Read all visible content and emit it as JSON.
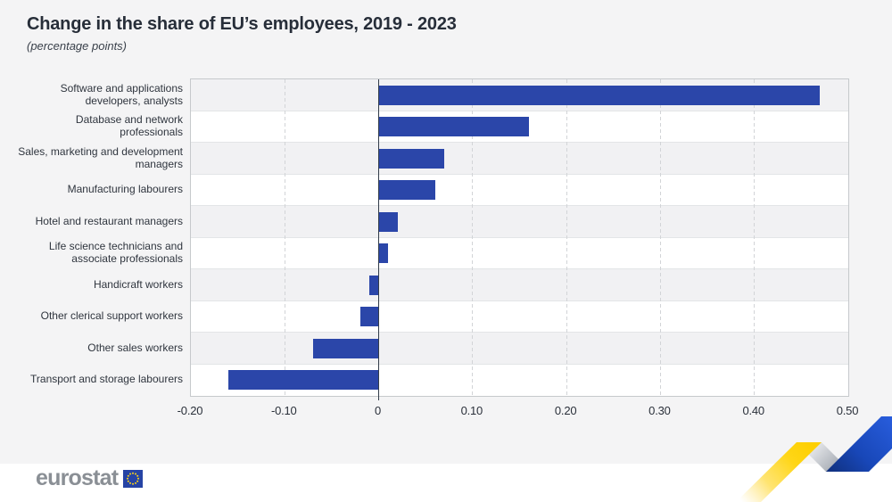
{
  "header": {
    "title": "Change in the share of EU’s employees, 2019 - 2023",
    "subtitle": "(percentage points)"
  },
  "chart_data": {
    "type": "bar",
    "orientation": "horizontal",
    "title": "Change in the share of EU’s employees, 2019 - 2023",
    "subtitle": "(percentage points)",
    "categories": [
      "Software and applications developers, analysts",
      "Database and network professionals",
      "Sales, marketing and development managers",
      "Manufacturing labourers",
      "Hotel and restaurant managers",
      "Life science technicians and associate professionals",
      "Handicraft workers",
      "Other clerical support workers",
      "Other sales workers",
      "Transport and storage labourers"
    ],
    "values": [
      0.47,
      0.16,
      0.07,
      0.06,
      0.02,
      0.01,
      -0.01,
      -0.02,
      -0.07,
      -0.16
    ],
    "xlim": [
      -0.2,
      0.5
    ],
    "x_ticks": [
      {
        "value": -0.2,
        "label": "-0.20"
      },
      {
        "value": -0.1,
        "label": "-0.10"
      },
      {
        "value": 0,
        "label": "0"
      },
      {
        "value": 0.1,
        "label": "0.10"
      },
      {
        "value": 0.2,
        "label": "0.20"
      },
      {
        "value": 0.3,
        "label": "0.30"
      },
      {
        "value": 0.4,
        "label": "0.40"
      },
      {
        "value": 0.5,
        "label": "0.50"
      }
    ],
    "grid": "vertical-dashed",
    "legend": "none",
    "zebra_rows": true
  },
  "colors": {
    "bar": "#2b46a9",
    "zero_line": "#333d4a",
    "stripe_gray": "#f1f1f3",
    "stripe_white": "#ffffff",
    "background": "#f4f4f5",
    "footer_background": "#ffffff",
    "logo_text": "#8a8f95",
    "flag_blue": "#2644a5",
    "star_yellow": "#ffd617",
    "ribbon_yellow": "#ffd400",
    "ribbon_blue": "#2356d6",
    "ribbon_gray": "#aab0b8"
  },
  "footer": {
    "logo_text": "eurostat"
  }
}
